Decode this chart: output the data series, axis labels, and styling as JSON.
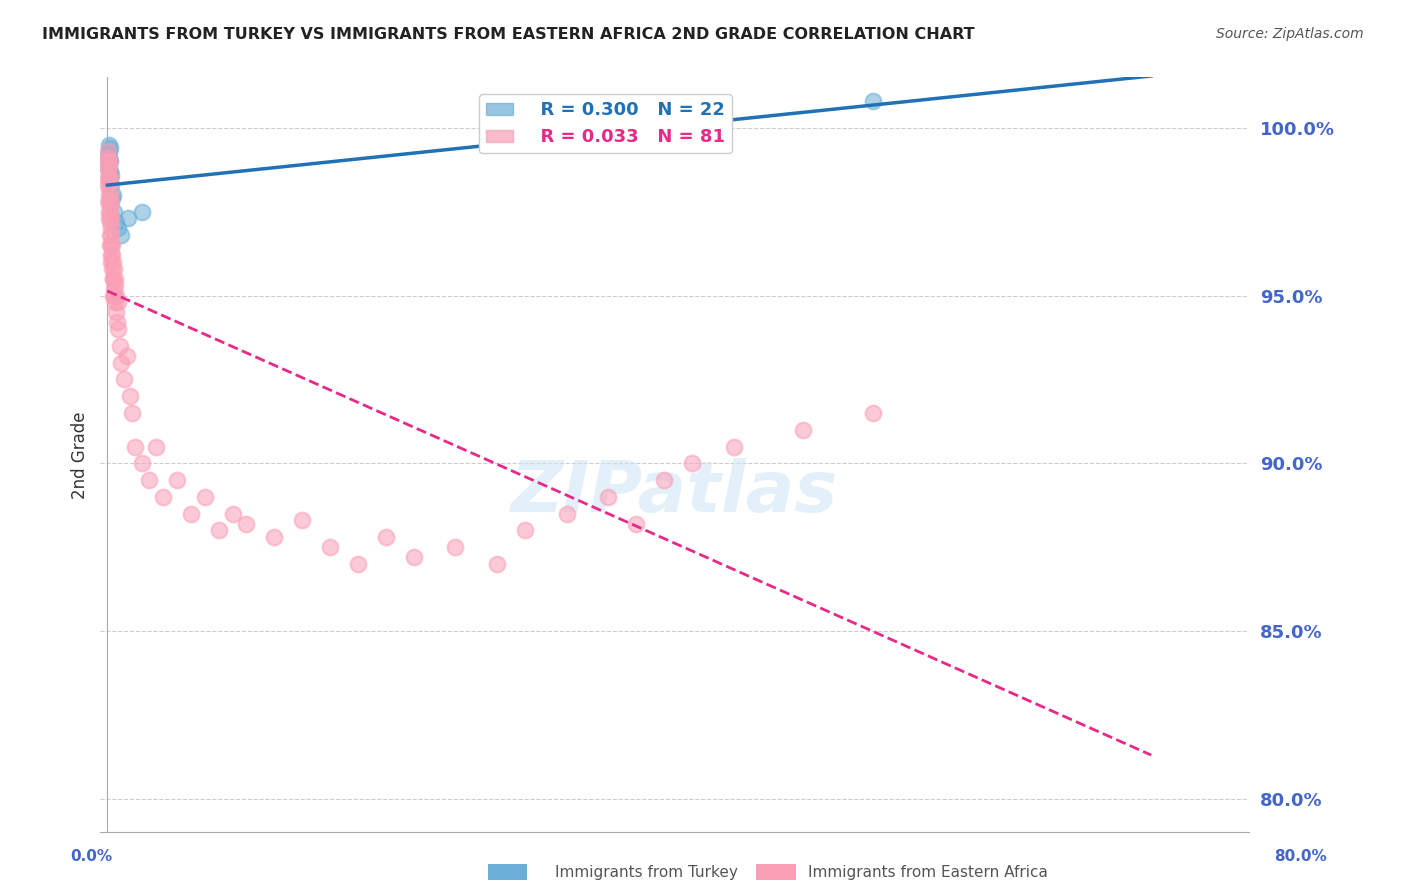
{
  "title": "IMMIGRANTS FROM TURKEY VS IMMIGRANTS FROM EASTERN AFRICA 2ND GRADE CORRELATION CHART",
  "source": "Source: ZipAtlas.com",
  "ylabel": "2nd Grade",
  "right_yticks": [
    100.0,
    95.0,
    90.0,
    85.0,
    80.0
  ],
  "right_ytick_labels": [
    "100.0%",
    "95.0%",
    "90.0%",
    "85.0%",
    "80.0%"
  ],
  "y_min": 79.0,
  "y_max": 101.5,
  "x_min": -0.5,
  "x_max": 82.0,
  "turkey_R": 0.3,
  "turkey_N": 22,
  "eastern_africa_R": 0.033,
  "eastern_africa_N": 81,
  "turkey_color": "#6baed6",
  "eastern_africa_color": "#fa9fb5",
  "turkey_line_color": "#2171b5",
  "eastern_africa_line_color": "#e7298a",
  "legend_label_turkey": "Immigrants from Turkey",
  "legend_label_eastern": "Immigrants from Eastern Africa",
  "background_color": "#ffffff",
  "grid_color": "#cccccc",
  "title_color": "#222222",
  "source_color": "#555555",
  "axis_label_color": "#4466cc",
  "turkey_x": [
    0.05,
    0.08,
    0.1,
    0.12,
    0.14,
    0.15,
    0.16,
    0.17,
    0.18,
    0.2,
    0.22,
    0.25,
    0.3,
    0.35,
    0.4,
    0.5,
    0.6,
    0.8,
    1.0,
    1.5,
    2.5,
    55.0
  ],
  "turkey_y": [
    98.8,
    99.2,
    99.0,
    99.5,
    99.3,
    99.1,
    98.7,
    99.4,
    98.5,
    99.0,
    97.8,
    98.6,
    98.3,
    97.9,
    98.0,
    97.5,
    97.2,
    97.0,
    96.8,
    97.3,
    97.5,
    100.8
  ],
  "eastern_africa_x": [
    0.02,
    0.03,
    0.04,
    0.05,
    0.06,
    0.07,
    0.08,
    0.09,
    0.1,
    0.1,
    0.11,
    0.12,
    0.13,
    0.14,
    0.15,
    0.16,
    0.17,
    0.18,
    0.19,
    0.2,
    0.21,
    0.22,
    0.23,
    0.24,
    0.25,
    0.26,
    0.27,
    0.28,
    0.3,
    0.32,
    0.34,
    0.36,
    0.38,
    0.4,
    0.42,
    0.44,
    0.46,
    0.48,
    0.5,
    0.52,
    0.55,
    0.58,
    0.6,
    0.65,
    0.7,
    0.75,
    0.8,
    0.9,
    1.0,
    1.2,
    1.4,
    1.6,
    1.8,
    2.0,
    2.5,
    3.0,
    3.5,
    4.0,
    5.0,
    6.0,
    7.0,
    8.0,
    9.0,
    10.0,
    12.0,
    14.0,
    16.0,
    18.0,
    20.0,
    22.0,
    25.0,
    28.0,
    30.0,
    33.0,
    36.0,
    38.0,
    40.0,
    42.0,
    45.0,
    50.0,
    55.0
  ],
  "eastern_africa_y": [
    99.0,
    98.5,
    99.3,
    98.8,
    99.1,
    97.8,
    98.3,
    99.0,
    98.6,
    97.5,
    98.2,
    98.9,
    97.3,
    98.4,
    98.0,
    97.8,
    98.5,
    97.2,
    96.8,
    98.0,
    97.5,
    96.5,
    97.8,
    96.2,
    97.3,
    96.8,
    97.0,
    96.5,
    96.0,
    96.5,
    95.8,
    96.2,
    95.5,
    95.0,
    95.5,
    96.0,
    95.2,
    95.8,
    95.0,
    95.5,
    94.8,
    95.3,
    94.5,
    95.0,
    94.2,
    94.8,
    94.0,
    93.5,
    93.0,
    92.5,
    93.2,
    92.0,
    91.5,
    90.5,
    90.0,
    89.5,
    90.5,
    89.0,
    89.5,
    88.5,
    89.0,
    88.0,
    88.5,
    88.2,
    87.8,
    88.3,
    87.5,
    87.0,
    87.8,
    87.2,
    87.5,
    87.0,
    88.0,
    88.5,
    89.0,
    88.2,
    89.5,
    90.0,
    90.5,
    91.0,
    91.5
  ]
}
